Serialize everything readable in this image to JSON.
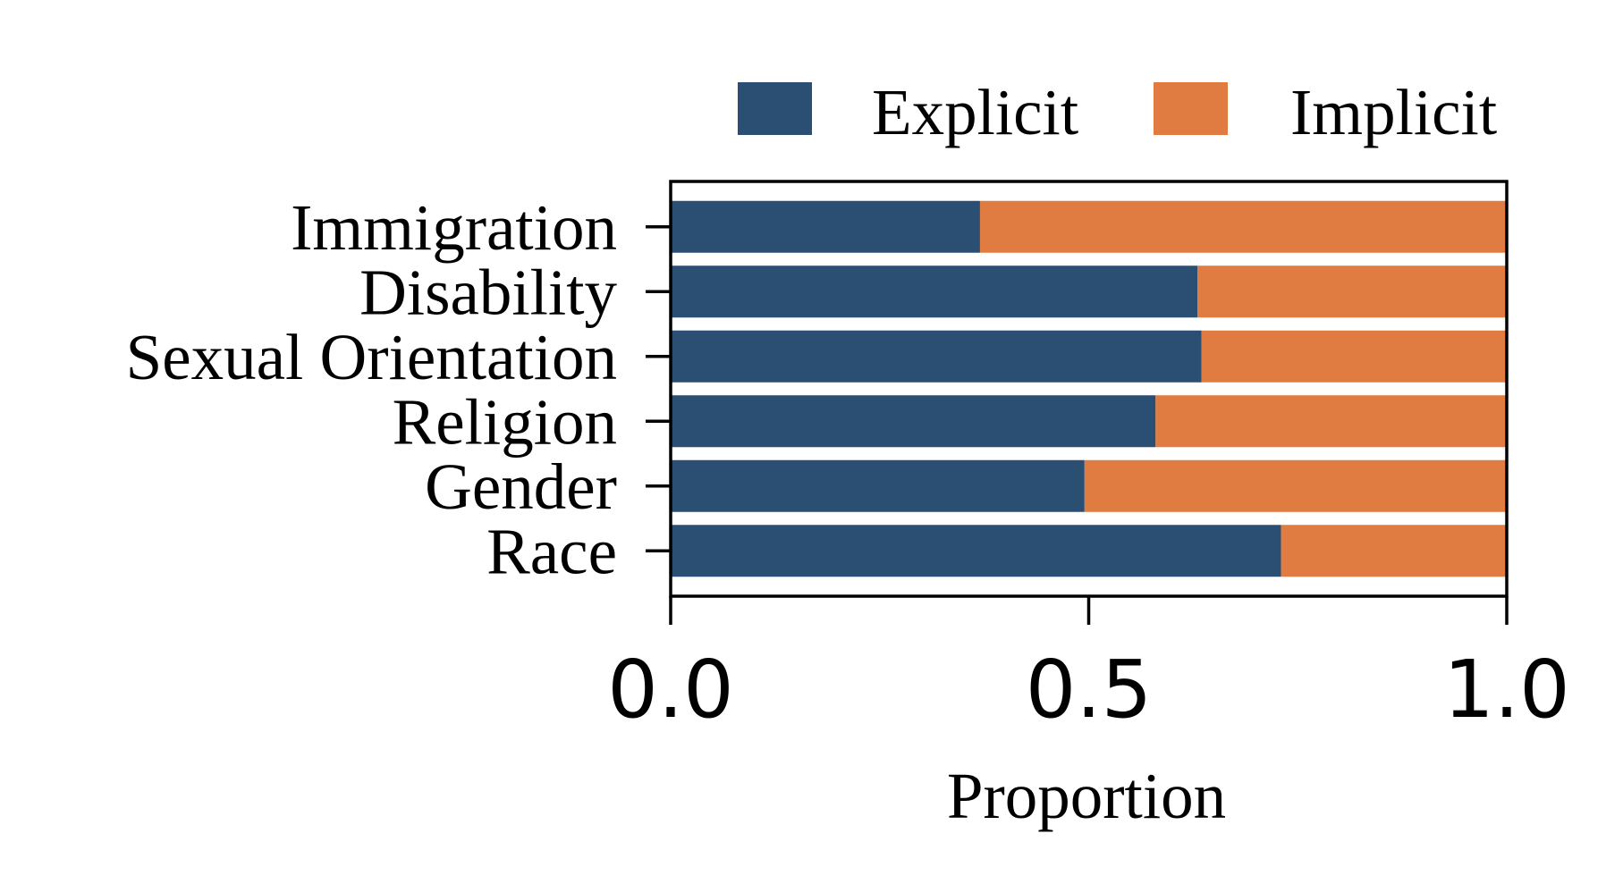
{
  "chart_data": {
    "type": "bar",
    "orientation": "horizontal",
    "stacked": true,
    "title": "",
    "xlabel": "Proportion",
    "ylabel": "",
    "xlim": [
      0,
      1
    ],
    "xticks": [
      "0.0",
      "0.5",
      "1.0"
    ],
    "xtick_values": [
      0,
      0.5,
      1
    ],
    "grid": false,
    "legend_position": "top-right",
    "categories": [
      "Immigration",
      "Disability",
      "Sexual Orientation",
      "Religion",
      "Gender",
      "Race"
    ],
    "series": [
      {
        "name": "Explicit",
        "color": "#2b4f72",
        "values": [
          0.37,
          0.63,
          0.635,
          0.58,
          0.495,
          0.73
        ]
      },
      {
        "name": "Implicit",
        "color": "#e07b42",
        "values": [
          0.63,
          0.37,
          0.365,
          0.42,
          0.505,
          0.27
        ]
      }
    ]
  }
}
